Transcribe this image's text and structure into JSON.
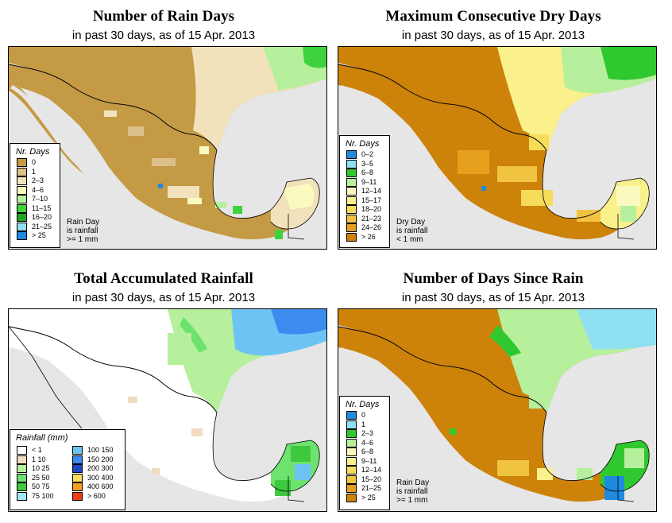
{
  "panels": [
    {
      "title": "Number of Rain Days",
      "subtitle": "in past 30 days, as of  15 Apr. 2013",
      "legend_title": "Nr. Days",
      "legend": [
        {
          "label": "0",
          "color": "#c49a45"
        },
        {
          "label": "1",
          "color": "#dcc08a"
        },
        {
          "label": "2–3",
          "color": "#f1e2bb"
        },
        {
          "label": "4–6",
          "color": "#fafabe"
        },
        {
          "label": "7–10",
          "color": "#b6f09c"
        },
        {
          "label": "11–15",
          "color": "#3ed23e"
        },
        {
          "label": "16–20",
          "color": "#1fa51f"
        },
        {
          "label": "21–25",
          "color": "#8ee0f2"
        },
        {
          "label": "> 25",
          "color": "#1f8be0"
        }
      ],
      "note": [
        "Rain Day",
        "is rainfall",
        ">= 1 mm"
      ]
    },
    {
      "title": "Maximum Consecutive Dry Days",
      "subtitle": "in past 30 days, as of  15 Apr. 2013",
      "legend_title": "Nr. Days",
      "legend": [
        {
          "label": "0–2",
          "color": "#1f8be0"
        },
        {
          "label": "3–5",
          "color": "#8ee0f2"
        },
        {
          "label": "6–8",
          "color": "#2fc82f"
        },
        {
          "label": "9–11",
          "color": "#b6f09c"
        },
        {
          "label": "12–14",
          "color": "#fafabe"
        },
        {
          "label": "15–17",
          "color": "#faf08c"
        },
        {
          "label": "18–20",
          "color": "#f5dc5a"
        },
        {
          "label": "21–23",
          "color": "#f0c341"
        },
        {
          "label": "24–26",
          "color": "#e6a01e"
        },
        {
          "label": "> 26",
          "color": "#cd820a"
        }
      ],
      "note": [
        "Dry Day",
        "is rainfall",
        "< 1 mm"
      ]
    },
    {
      "title": "Total Accumulated Rainfall",
      "subtitle": "in past 30 days, as of  15 Apr. 2013",
      "legend_title": "Rainfall (mm)",
      "legend_col1": [
        {
          "label": "< 1",
          "color": "#ffffff"
        },
        {
          "label": "1    10",
          "color": "#f0dcbe"
        },
        {
          "label": "10    25",
          "color": "#b6f09c"
        },
        {
          "label": "25    50",
          "color": "#6ee26e"
        },
        {
          "label": "50    75",
          "color": "#3ec83e"
        },
        {
          "label": "75  100",
          "color": "#a0e6f5"
        }
      ],
      "legend_col2": [
        {
          "label": "100  150",
          "color": "#6ec3f5"
        },
        {
          "label": "150  200",
          "color": "#3c8cf0"
        },
        {
          "label": "200  300",
          "color": "#1e46c8"
        },
        {
          "label": "300  400",
          "color": "#fadc5a"
        },
        {
          "label": "400  600",
          "color": "#f5a01e"
        },
        {
          "label": "> 600",
          "color": "#f03c14"
        }
      ]
    },
    {
      "title": "Number of Days Since Rain",
      "subtitle": "in past 30 days, as of  15 Apr. 2013",
      "legend_title": "Nr. Days",
      "legend": [
        {
          "label": "0",
          "color": "#1f8be0"
        },
        {
          "label": "1",
          "color": "#8ee0f2"
        },
        {
          "label": "2–3",
          "color": "#2fc82f"
        },
        {
          "label": "4–6",
          "color": "#b6f09c"
        },
        {
          "label": "6–8",
          "color": "#fafabe"
        },
        {
          "label": "9–11",
          "color": "#faf08c"
        },
        {
          "label": "12–14",
          "color": "#f5dc5a"
        },
        {
          "label": "15–20",
          "color": "#f0c341"
        },
        {
          "label": "21–25",
          "color": "#e6a01e"
        },
        {
          "label": "> 25",
          "color": "#cd820a"
        }
      ],
      "note": [
        "Rain Day",
        "is rainfall",
        ">= 1 mm"
      ]
    }
  ]
}
